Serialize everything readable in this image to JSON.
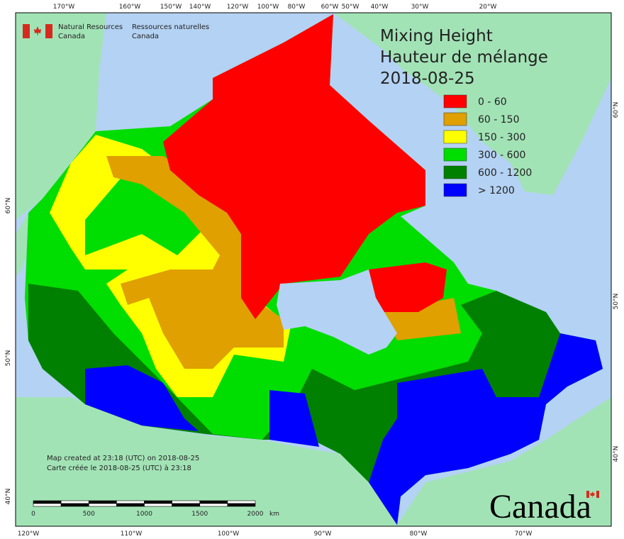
{
  "header": {
    "org_en": [
      "Natural Resources",
      "Canada"
    ],
    "org_fr": [
      "Ressources naturelles",
      "Canada"
    ]
  },
  "title": [
    "Mixing Height",
    "Hauteur de mélange",
    "2018-08-25"
  ],
  "legend": [
    {
      "label": "0 - 60",
      "color": "#ff0000"
    },
    {
      "label": "60 - 150",
      "color": "#dfa000"
    },
    {
      "label": "150 - 300",
      "color": "#ffff00"
    },
    {
      "label": "300 - 600",
      "color": "#00dd00"
    },
    {
      "label": "600 - 1200",
      "color": "#008000"
    },
    {
      "label": "> 1200",
      "color": "#0000ff"
    }
  ],
  "top_axis": [
    "170°W",
    "160°W",
    "150°W",
    "140°W",
    "120°W",
    "100°W",
    "80°W",
    "60°W",
    "50°W",
    "40°W",
    "30°W",
    "20°W"
  ],
  "bottom_axis": [
    "120°W",
    "110°W",
    "100°W",
    "90°W",
    "80°W",
    "70°W"
  ],
  "left_axis": [
    "60°N",
    "50°N",
    "40°N"
  ],
  "right_axis": [
    "60°N",
    "50°N",
    "40°N"
  ],
  "footer": {
    "created_en": "Map created at 23:18 (UTC) on 2018-08-25",
    "created_fr": "Carte créée le 2018-08-25 (UTC) à 23:18"
  },
  "scale": {
    "ticks": [
      "0",
      "500",
      "1000",
      "1500",
      "2000"
    ],
    "unit": "km"
  },
  "wordmark": "Canada"
}
